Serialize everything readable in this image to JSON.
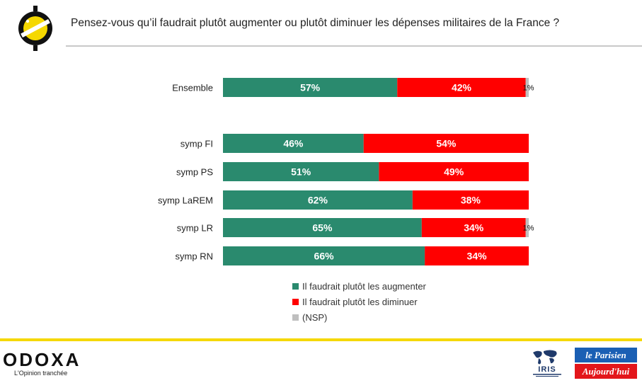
{
  "header": {
    "question": "Pensez-vous qu’il faudrait plutôt augmenter ou plutôt diminuer les dépenses militaires de la France ?"
  },
  "colors": {
    "augmenter": "#2a8a6e",
    "diminuer": "#ff0000",
    "nsp": "#bfbfbf",
    "accent": "#f5d800"
  },
  "chart_data": {
    "type": "bar",
    "orientation": "horizontal",
    "stacked": true,
    "categories": [
      "Ensemble",
      "symp FI",
      "symp PS",
      "symp LaREM",
      "symp LR",
      "symp RN"
    ],
    "series": [
      {
        "name": "Il faudrait plutôt les augmenter",
        "values": [
          57,
          46,
          51,
          62,
          65,
          66
        ],
        "labels": [
          "57%",
          "46%",
          "51%",
          "62%",
          "65%",
          "66%"
        ]
      },
      {
        "name": "Il faudrait plutôt les diminuer",
        "values": [
          42,
          54,
          49,
          38,
          34,
          34
        ],
        "labels": [
          "42%",
          "54%",
          "49%",
          "38%",
          "34%",
          "34%"
        ]
      },
      {
        "name": "(NSP)",
        "values": [
          1,
          0,
          0,
          0,
          1,
          0
        ],
        "labels": [
          "1%",
          "",
          "",
          "",
          "1%",
          ""
        ]
      }
    ],
    "xlim": [
      0,
      100
    ],
    "legend_position": "bottom",
    "grid": false
  },
  "legend": {
    "items": [
      {
        "label": "Il faudrait plutôt les augmenter",
        "color": "#2a8a6e"
      },
      {
        "label": "Il faudrait plutôt les diminuer",
        "color": "#ff0000"
      },
      {
        "label": "(NSP)",
        "color": "#bfbfbf"
      }
    ]
  },
  "footer": {
    "brand": "ODOXA",
    "tagline": "L'Opinion tranchée",
    "partner_iris": "IRIS",
    "partner_lp_top": "le Parisien",
    "partner_lp_bottom": "Aujourd'hui"
  }
}
